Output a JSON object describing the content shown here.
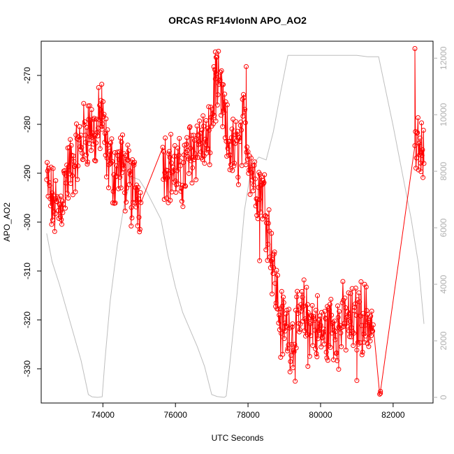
{
  "chart_data": {
    "type": "line",
    "title": "ORCAS RF14vIonN APO_AO2",
    "xlabel": "UTC Seconds",
    "ylabel": "APO_AO2",
    "xlim": [
      72300,
      83100
    ],
    "ylim": [
      -337,
      -263
    ],
    "ylim_right": [
      -200,
      12600
    ],
    "x_ticks": [
      74000,
      76000,
      78000,
      80000,
      82000
    ],
    "x_tick_labels": [
      "74000",
      "76000",
      "78000",
      "80000",
      "82000"
    ],
    "y_ticks": [
      -330,
      -320,
      -310,
      -300,
      -290,
      -280,
      -270
    ],
    "y_tick_labels": [
      "-330",
      "-320",
      "-310",
      "-300",
      "-290",
      "-280",
      "-270"
    ],
    "y_ticks_right": [
      0,
      2000,
      4000,
      6000,
      8000,
      10000,
      12000
    ],
    "y_tick_labels_right": [
      "0",
      "2000",
      "4000",
      "6000",
      "8000",
      "10000",
      "12000"
    ],
    "colors": {
      "primary": "#ff0000",
      "secondary": "#bebebe",
      "axis": "#000000",
      "right_axis": "#b0b0b0"
    },
    "grid": false,
    "series": [
      {
        "axis": "left",
        "color": "#ff0000",
        "marker": "open-circle",
        "anchors": [
          [
            72450,
            -292
          ],
          [
            72600,
            -296
          ],
          [
            72800,
            -298
          ],
          [
            72950,
            -292
          ],
          [
            73100,
            -289
          ],
          [
            73300,
            -286
          ],
          [
            73500,
            -282
          ],
          [
            73650,
            -280
          ],
          [
            73800,
            -283
          ],
          [
            73950,
            -278
          ],
          [
            74100,
            -286
          ],
          [
            74300,
            -290
          ],
          [
            74500,
            -288
          ],
          [
            74700,
            -292
          ],
          [
            74900,
            -293
          ],
          [
            75050,
            -296
          ],
          [
            75650,
            -287
          ],
          [
            75900,
            -289
          ],
          [
            76150,
            -291
          ],
          [
            76400,
            -286
          ],
          [
            76650,
            -283
          ],
          [
            76900,
            -285
          ],
          [
            77100,
            -272
          ],
          [
            77300,
            -276
          ],
          [
            77400,
            -283
          ],
          [
            77600,
            -286
          ],
          [
            77750,
            -285
          ],
          [
            77900,
            -280
          ],
          [
            78000,
            -285
          ],
          [
            78200,
            -292
          ],
          [
            78400,
            -293
          ],
          [
            78550,
            -300
          ],
          [
            78900,
            -321
          ],
          [
            79100,
            -322
          ],
          [
            79300,
            -324
          ],
          [
            79500,
            -319
          ],
          [
            79700,
            -320
          ],
          [
            79900,
            -322
          ],
          [
            80100,
            -323
          ],
          [
            80300,
            -321
          ],
          [
            80500,
            -321
          ],
          [
            80700,
            -320
          ],
          [
            80900,
            -321
          ],
          [
            81100,
            -319
          ],
          [
            81300,
            -320
          ],
          [
            81450,
            -321
          ],
          [
            81650,
            -335
          ],
          [
            82600,
            -286
          ],
          [
            82700,
            -285
          ],
          [
            82850,
            -288
          ]
        ],
        "gaps": [
          [
            75050,
            75650
          ],
          [
            81450,
            82600
          ]
        ],
        "special_points": [
          [
            81630,
            -335.2
          ],
          [
            81650,
            -334.6
          ],
          [
            82600,
            -264.5
          ],
          [
            77100,
            -265.2
          ],
          [
            77120,
            -266.3
          ],
          [
            73970,
            -271.8
          ],
          [
            74780,
            -300.8
          ],
          [
            79650,
            -329.5
          ],
          [
            81000,
            -332.4
          ],
          [
            78320,
            -307.9
          ],
          [
            77950,
            -268.2
          ],
          [
            80500,
            -330.1
          ]
        ]
      },
      {
        "axis": "right",
        "color": "#bebebe",
        "marker": "none",
        "points": [
          [
            72450,
            5800
          ],
          [
            72600,
            4800
          ],
          [
            72800,
            4000
          ],
          [
            73000,
            3100
          ],
          [
            73200,
            2200
          ],
          [
            73400,
            1300
          ],
          [
            73600,
            100
          ],
          [
            73700,
            20
          ],
          [
            73850,
            0
          ],
          [
            73980,
            20
          ],
          [
            74050,
            1200
          ],
          [
            74200,
            3400
          ],
          [
            74400,
            5400
          ],
          [
            74600,
            6900
          ],
          [
            74800,
            7800
          ],
          [
            75000,
            7700
          ],
          [
            75200,
            7300
          ],
          [
            75400,
            6800
          ],
          [
            75600,
            6300
          ],
          [
            75800,
            5000
          ],
          [
            76000,
            3900
          ],
          [
            76200,
            3000
          ],
          [
            76400,
            2400
          ],
          [
            76600,
            1800
          ],
          [
            76800,
            1100
          ],
          [
            77000,
            100
          ],
          [
            77150,
            30
          ],
          [
            77350,
            0
          ],
          [
            77400,
            50
          ],
          [
            77500,
            1200
          ],
          [
            77700,
            3700
          ],
          [
            77900,
            6600
          ],
          [
            78100,
            8200
          ],
          [
            78300,
            8500
          ],
          [
            78500,
            8400
          ],
          [
            78700,
            9400
          ],
          [
            78900,
            10800
          ],
          [
            79100,
            12100
          ],
          [
            79400,
            12100
          ],
          [
            80000,
            12100
          ],
          [
            80700,
            12100
          ],
          [
            81000,
            12100
          ],
          [
            81300,
            12050
          ],
          [
            81600,
            12050
          ],
          [
            82000,
            9600
          ],
          [
            82500,
            6300
          ],
          [
            82700,
            4700
          ],
          [
            82850,
            2600
          ]
        ]
      }
    ]
  }
}
